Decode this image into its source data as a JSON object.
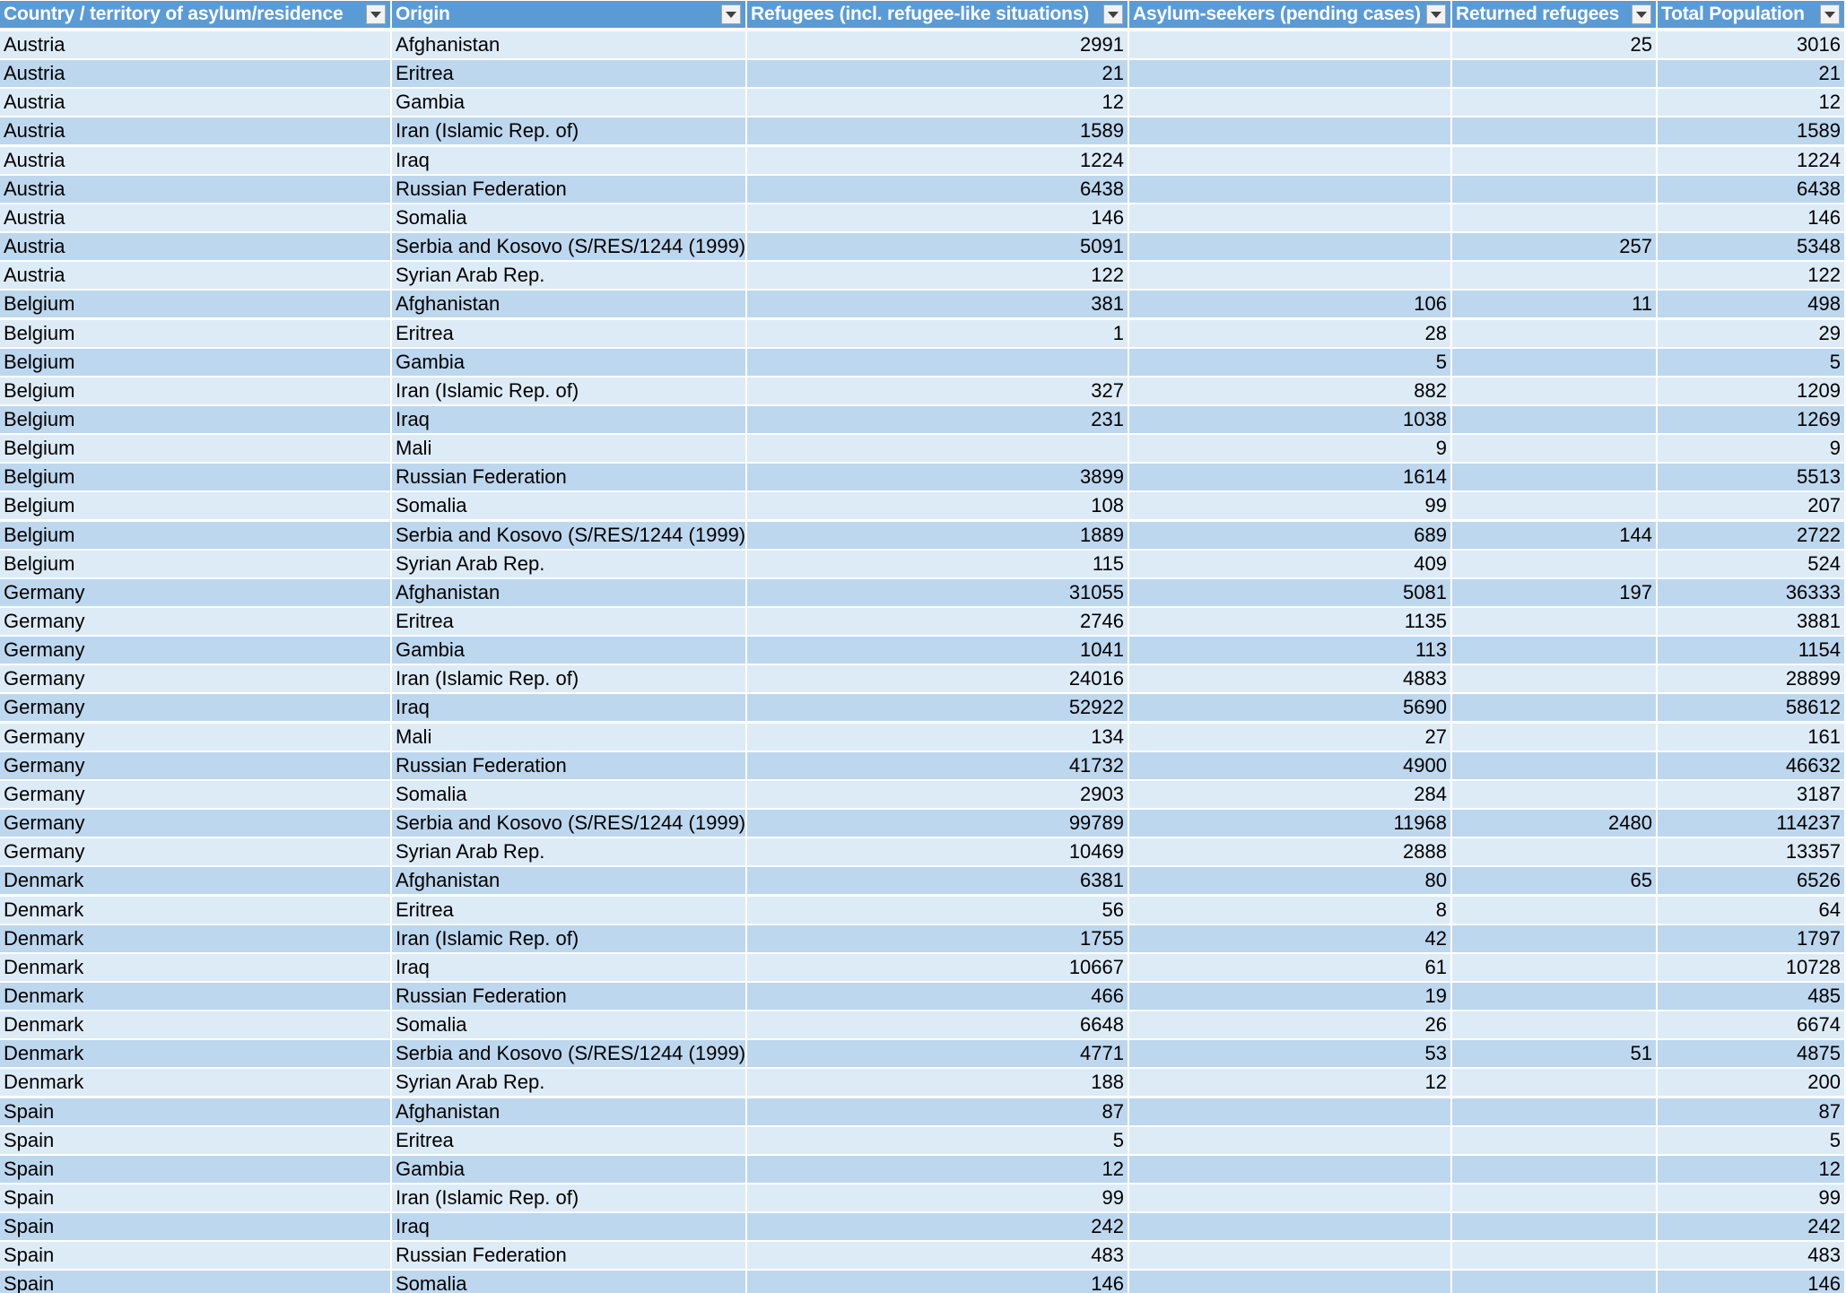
{
  "columns": [
    {
      "label": "Country / territory of asylum/residence",
      "key": "country"
    },
    {
      "label": "Origin",
      "key": "origin"
    },
    {
      "label": "Refugees (incl. refugee-like situations)",
      "key": "refugees"
    },
    {
      "label": "Asylum-seekers (pending cases)",
      "key": "asylum"
    },
    {
      "label": "Returned refugees",
      "key": "returned"
    },
    {
      "label": "Total Population",
      "key": "total"
    }
  ],
  "colors": {
    "header": "#5b9bd5",
    "band_dark": "#bdd7ee",
    "band_light": "#ddebf7",
    "header_text": "#ffffff",
    "grid": "#ffffff"
  },
  "icons": {
    "filter": "filter-dropdown-icon"
  },
  "rows": [
    {
      "country": "Austria",
      "origin": "Afghanistan",
      "refugees": "2991",
      "asylum": "",
      "returned": "25",
      "total": "3016"
    },
    {
      "country": "Austria",
      "origin": "Eritrea",
      "refugees": "21",
      "asylum": "",
      "returned": "",
      "total": "21"
    },
    {
      "country": "Austria",
      "origin": "Gambia",
      "refugees": "12",
      "asylum": "",
      "returned": "",
      "total": "12"
    },
    {
      "country": "Austria",
      "origin": "Iran (Islamic Rep. of)",
      "refugees": "1589",
      "asylum": "",
      "returned": "",
      "total": "1589"
    },
    {
      "country": "Austria",
      "origin": "Iraq",
      "refugees": "1224",
      "asylum": "",
      "returned": "",
      "total": "1224"
    },
    {
      "country": "Austria",
      "origin": "Russian Federation",
      "refugees": "6438",
      "asylum": "",
      "returned": "",
      "total": "6438"
    },
    {
      "country": "Austria",
      "origin": "Somalia",
      "refugees": "146",
      "asylum": "",
      "returned": "",
      "total": "146"
    },
    {
      "country": "Austria",
      "origin": "Serbia and Kosovo (S/RES/1244 (1999))",
      "refugees": "5091",
      "asylum": "",
      "returned": "257",
      "total": "5348"
    },
    {
      "country": "Austria",
      "origin": "Syrian Arab Rep.",
      "refugees": "122",
      "asylum": "",
      "returned": "",
      "total": "122"
    },
    {
      "country": "Belgium",
      "origin": "Afghanistan",
      "refugees": "381",
      "asylum": "106",
      "returned": "11",
      "total": "498"
    },
    {
      "country": "Belgium",
      "origin": "Eritrea",
      "refugees": "1",
      "asylum": "28",
      "returned": "",
      "total": "29"
    },
    {
      "country": "Belgium",
      "origin": "Gambia",
      "refugees": "",
      "asylum": "5",
      "returned": "",
      "total": "5"
    },
    {
      "country": "Belgium",
      "origin": "Iran (Islamic Rep. of)",
      "refugees": "327",
      "asylum": "882",
      "returned": "",
      "total": "1209"
    },
    {
      "country": "Belgium",
      "origin": "Iraq",
      "refugees": "231",
      "asylum": "1038",
      "returned": "",
      "total": "1269"
    },
    {
      "country": "Belgium",
      "origin": "Mali",
      "refugees": "",
      "asylum": "9",
      "returned": "",
      "total": "9"
    },
    {
      "country": "Belgium",
      "origin": "Russian Federation",
      "refugees": "3899",
      "asylum": "1614",
      "returned": "",
      "total": "5513"
    },
    {
      "country": "Belgium",
      "origin": "Somalia",
      "refugees": "108",
      "asylum": "99",
      "returned": "",
      "total": "207"
    },
    {
      "country": "Belgium",
      "origin": "Serbia and Kosovo (S/RES/1244 (1999))",
      "refugees": "1889",
      "asylum": "689",
      "returned": "144",
      "total": "2722"
    },
    {
      "country": "Belgium",
      "origin": "Syrian Arab Rep.",
      "refugees": "115",
      "asylum": "409",
      "returned": "",
      "total": "524"
    },
    {
      "country": "Germany",
      "origin": "Afghanistan",
      "refugees": "31055",
      "asylum": "5081",
      "returned": "197",
      "total": "36333"
    },
    {
      "country": "Germany",
      "origin": "Eritrea",
      "refugees": "2746",
      "asylum": "1135",
      "returned": "",
      "total": "3881"
    },
    {
      "country": "Germany",
      "origin": "Gambia",
      "refugees": "1041",
      "asylum": "113",
      "returned": "",
      "total": "1154"
    },
    {
      "country": "Germany",
      "origin": "Iran (Islamic Rep. of)",
      "refugees": "24016",
      "asylum": "4883",
      "returned": "",
      "total": "28899"
    },
    {
      "country": "Germany",
      "origin": "Iraq",
      "refugees": "52922",
      "asylum": "5690",
      "returned": "",
      "total": "58612"
    },
    {
      "country": "Germany",
      "origin": "Mali",
      "refugees": "134",
      "asylum": "27",
      "returned": "",
      "total": "161"
    },
    {
      "country": "Germany",
      "origin": "Russian Federation",
      "refugees": "41732",
      "asylum": "4900",
      "returned": "",
      "total": "46632"
    },
    {
      "country": "Germany",
      "origin": "Somalia",
      "refugees": "2903",
      "asylum": "284",
      "returned": "",
      "total": "3187"
    },
    {
      "country": "Germany",
      "origin": "Serbia and Kosovo (S/RES/1244 (1999))",
      "refugees": "99789",
      "asylum": "11968",
      "returned": "2480",
      "total": "114237"
    },
    {
      "country": "Germany",
      "origin": "Syrian Arab Rep.",
      "refugees": "10469",
      "asylum": "2888",
      "returned": "",
      "total": "13357"
    },
    {
      "country": "Denmark",
      "origin": "Afghanistan",
      "refugees": "6381",
      "asylum": "80",
      "returned": "65",
      "total": "6526"
    },
    {
      "country": "Denmark",
      "origin": "Eritrea",
      "refugees": "56",
      "asylum": "8",
      "returned": "",
      "total": "64"
    },
    {
      "country": "Denmark",
      "origin": "Iran (Islamic Rep. of)",
      "refugees": "1755",
      "asylum": "42",
      "returned": "",
      "total": "1797"
    },
    {
      "country": "Denmark",
      "origin": "Iraq",
      "refugees": "10667",
      "asylum": "61",
      "returned": "",
      "total": "10728"
    },
    {
      "country": "Denmark",
      "origin": "Russian Federation",
      "refugees": "466",
      "asylum": "19",
      "returned": "",
      "total": "485"
    },
    {
      "country": "Denmark",
      "origin": "Somalia",
      "refugees": "6648",
      "asylum": "26",
      "returned": "",
      "total": "6674"
    },
    {
      "country": "Denmark",
      "origin": "Serbia and Kosovo (S/RES/1244 (1999))",
      "refugees": "4771",
      "asylum": "53",
      "returned": "51",
      "total": "4875"
    },
    {
      "country": "Denmark",
      "origin": "Syrian Arab Rep.",
      "refugees": "188",
      "asylum": "12",
      "returned": "",
      "total": "200"
    },
    {
      "country": "Spain",
      "origin": "Afghanistan",
      "refugees": "87",
      "asylum": "",
      "returned": "",
      "total": "87"
    },
    {
      "country": "Spain",
      "origin": "Eritrea",
      "refugees": "5",
      "asylum": "",
      "returned": "",
      "total": "5"
    },
    {
      "country": "Spain",
      "origin": "Gambia",
      "refugees": "12",
      "asylum": "",
      "returned": "",
      "total": "12"
    },
    {
      "country": "Spain",
      "origin": "Iran (Islamic Rep. of)",
      "refugees": "99",
      "asylum": "",
      "returned": "",
      "total": "99"
    },
    {
      "country": "Spain",
      "origin": "Iraq",
      "refugees": "242",
      "asylum": "",
      "returned": "",
      "total": "242"
    },
    {
      "country": "Spain",
      "origin": "Russian Federation",
      "refugees": "483",
      "asylum": "",
      "returned": "",
      "total": "483"
    },
    {
      "country": "Spain",
      "origin": "Somalia",
      "refugees": "146",
      "asylum": "",
      "returned": "",
      "total": "146"
    }
  ]
}
